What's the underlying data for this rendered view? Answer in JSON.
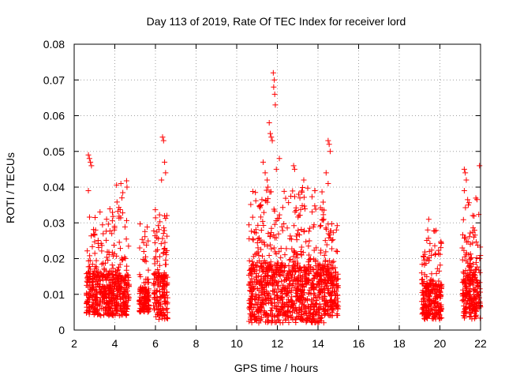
{
  "chart_data": {
    "type": "scatter",
    "title": "Day 113 of 2019, Rate Of TEC Index for receiver lord",
    "xlabel": "GPS time / hours",
    "ylabel": "ROTI / TECUs",
    "xlim": [
      2,
      22
    ],
    "ylim": [
      0,
      0.08
    ],
    "x_ticks": [
      "2",
      "4",
      "6",
      "8",
      "10",
      "12",
      "14",
      "16",
      "18",
      "20",
      "22"
    ],
    "y_ticks": [
      "0",
      "0.01",
      "0.02",
      "0.03",
      "0.04",
      "0.05",
      "0.06",
      "0.07",
      "0.08"
    ],
    "grid": true,
    "marker": "+",
    "color": "#ff0000",
    "clusters": [
      {
        "x_range": [
          2.6,
          4.0
        ],
        "y_base": [
          0.004,
          0.016
        ],
        "y_spread_max": 0.034
      },
      {
        "x_range": [
          4.0,
          4.7
        ],
        "y_base": [
          0.004,
          0.015
        ],
        "y_spread_max": 0.042
      },
      {
        "x_range": [
          5.2,
          5.7
        ],
        "y_base": [
          0.005,
          0.012
        ],
        "y_spread_max": 0.03
      },
      {
        "x_range": [
          5.9,
          6.6
        ],
        "y_base": [
          0.003,
          0.015
        ],
        "y_spread_max": 0.034
      },
      {
        "x_range": [
          10.6,
          14.3
        ],
        "y_base": [
          0.002,
          0.018
        ],
        "y_spread_max": 0.04
      },
      {
        "x_range": [
          14.3,
          15.0
        ],
        "y_base": [
          0.004,
          0.016
        ],
        "y_spread_max": 0.03
      },
      {
        "x_range": [
          19.1,
          20.1
        ],
        "y_base": [
          0.003,
          0.013
        ],
        "y_spread_max": 0.028
      },
      {
        "x_range": [
          21.1,
          22.0
        ],
        "y_base": [
          0.003,
          0.016
        ],
        "y_spread_max": 0.037
      }
    ],
    "peaks": [
      {
        "x": 2.7,
        "y": 0.049
      },
      {
        "x": 2.75,
        "y": 0.048
      },
      {
        "x": 2.8,
        "y": 0.047
      },
      {
        "x": 2.85,
        "y": 0.046
      },
      {
        "x": 2.7,
        "y": 0.039
      },
      {
        "x": 4.3,
        "y": 0.041
      },
      {
        "x": 4.35,
        "y": 0.037
      },
      {
        "x": 4.6,
        "y": 0.04
      },
      {
        "x": 6.35,
        "y": 0.054
      },
      {
        "x": 6.4,
        "y": 0.053
      },
      {
        "x": 6.45,
        "y": 0.047
      },
      {
        "x": 6.3,
        "y": 0.042
      },
      {
        "x": 6.5,
        "y": 0.044
      },
      {
        "x": 11.3,
        "y": 0.047
      },
      {
        "x": 11.4,
        "y": 0.044
      },
      {
        "x": 11.5,
        "y": 0.042
      },
      {
        "x": 11.6,
        "y": 0.058
      },
      {
        "x": 11.65,
        "y": 0.055
      },
      {
        "x": 11.7,
        "y": 0.054
      },
      {
        "x": 11.75,
        "y": 0.053
      },
      {
        "x": 11.8,
        "y": 0.072
      },
      {
        "x": 11.85,
        "y": 0.07
      },
      {
        "x": 11.82,
        "y": 0.068
      },
      {
        "x": 11.87,
        "y": 0.066
      },
      {
        "x": 11.9,
        "y": 0.063
      },
      {
        "x": 12.1,
        "y": 0.048
      },
      {
        "x": 11.95,
        "y": 0.045
      },
      {
        "x": 12.8,
        "y": 0.046
      },
      {
        "x": 12.85,
        "y": 0.045
      },
      {
        "x": 13.3,
        "y": 0.042
      },
      {
        "x": 13.05,
        "y": 0.038
      },
      {
        "x": 13.85,
        "y": 0.039
      },
      {
        "x": 14.4,
        "y": 0.044
      },
      {
        "x": 14.5,
        "y": 0.053
      },
      {
        "x": 14.55,
        "y": 0.052
      },
      {
        "x": 14.6,
        "y": 0.05
      },
      {
        "x": 14.5,
        "y": 0.041
      },
      {
        "x": 19.45,
        "y": 0.031
      },
      {
        "x": 19.4,
        "y": 0.028
      },
      {
        "x": 21.2,
        "y": 0.045
      },
      {
        "x": 21.25,
        "y": 0.044
      },
      {
        "x": 21.3,
        "y": 0.042
      },
      {
        "x": 21.2,
        "y": 0.039
      },
      {
        "x": 21.95,
        "y": 0.046
      },
      {
        "x": 21.4,
        "y": 0.035
      }
    ]
  }
}
